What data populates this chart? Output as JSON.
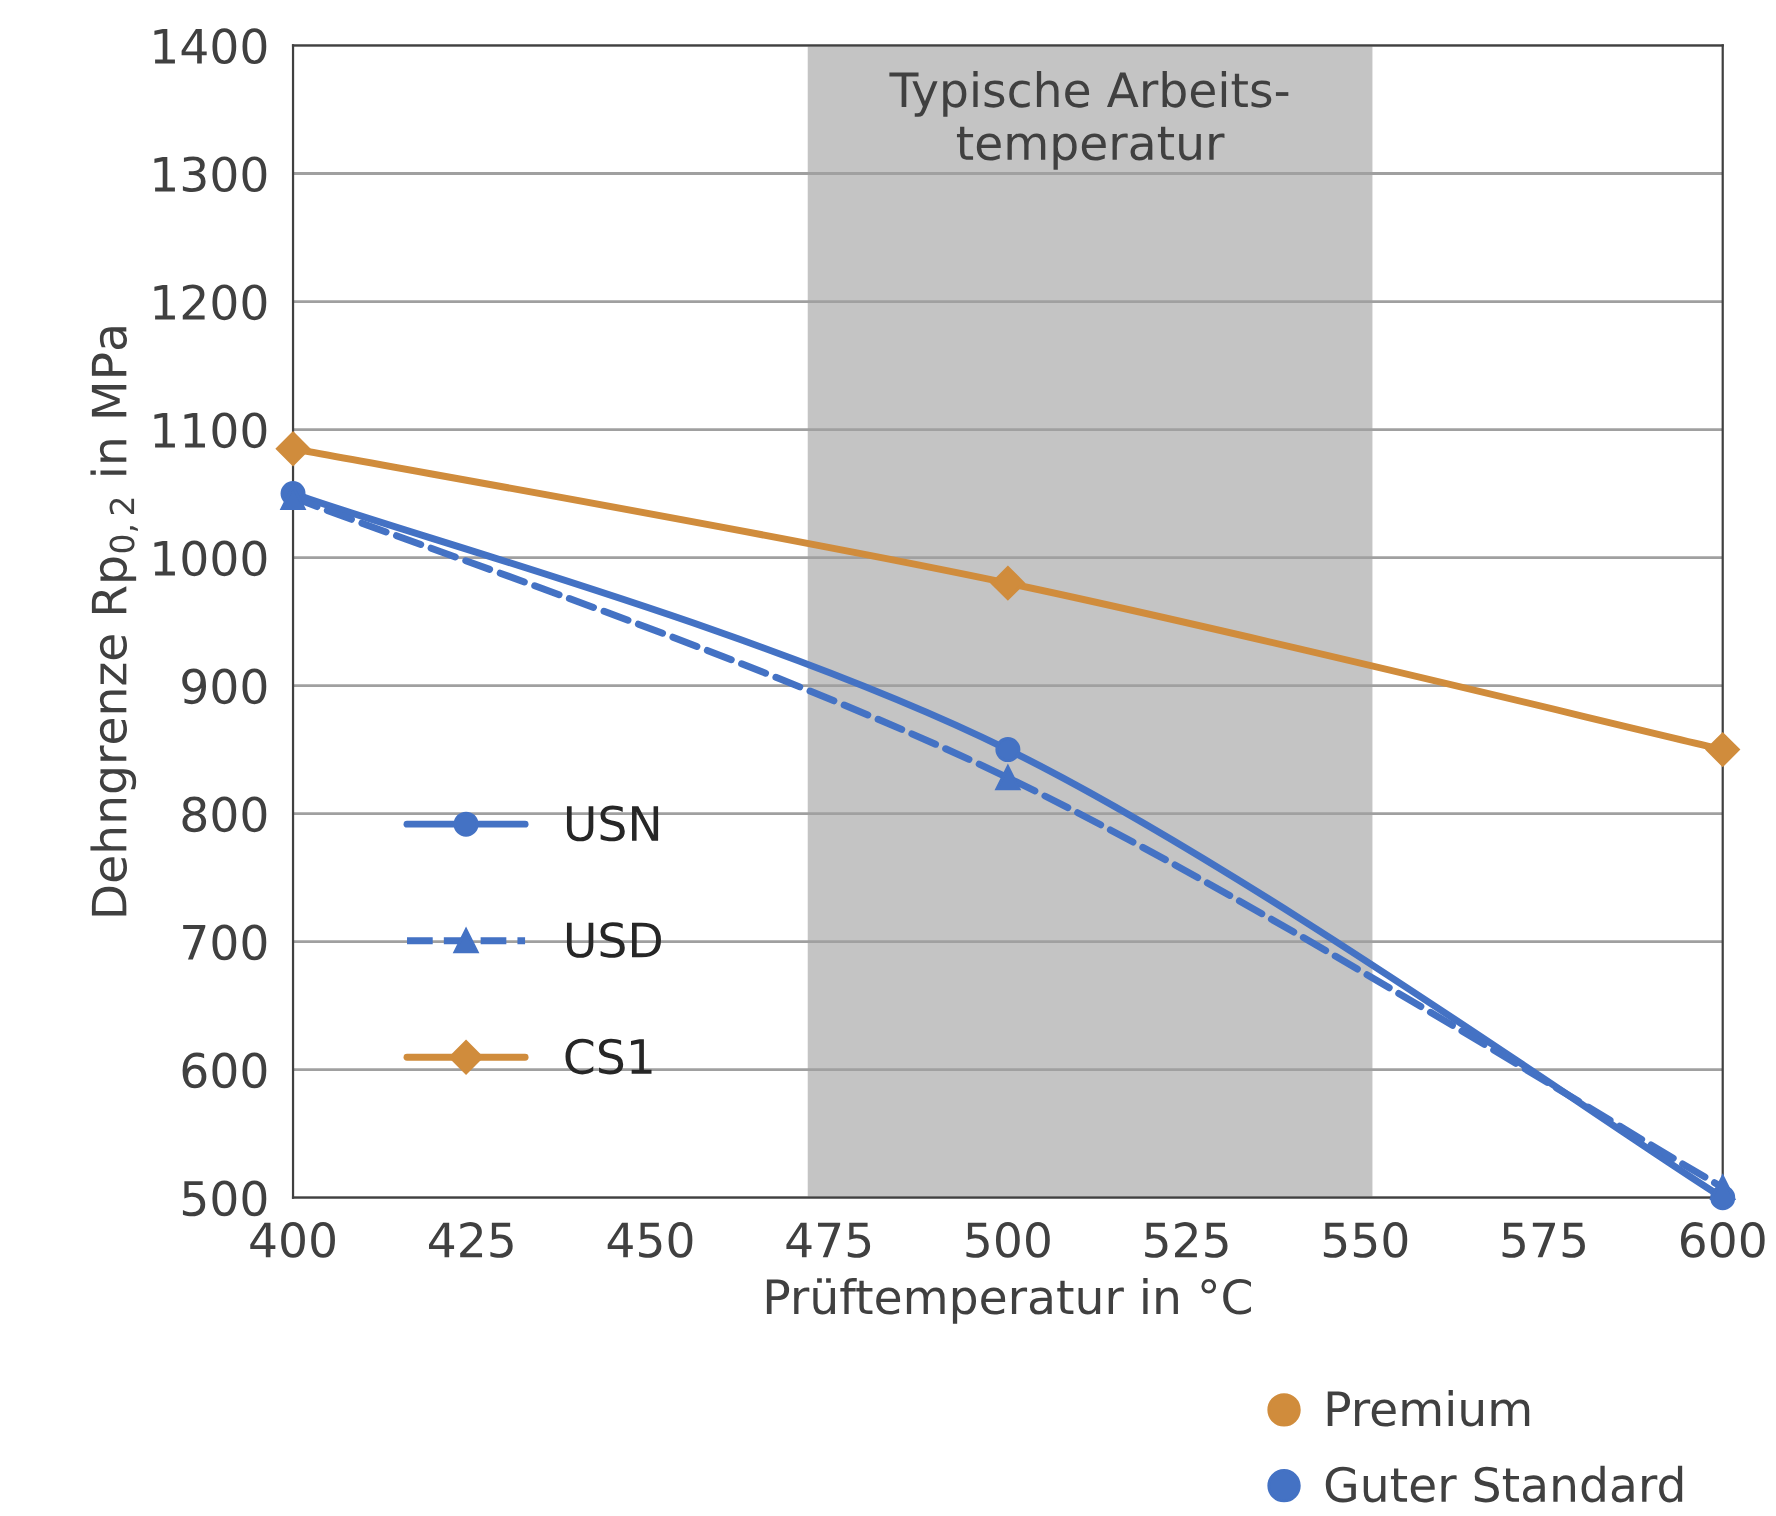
{
  "chart_data": {
    "type": "line",
    "xlabel": "Prüftemperatur in °C",
    "ylabel": "Dehngrenze Rp$_{0,2}$ in MPa",
    "x": [
      400,
      500,
      600
    ],
    "series": [
      {
        "name": "USN",
        "color": "#4472c4",
        "values": [
          1050,
          850,
          500
        ],
        "marker": "circle",
        "line_style": "solid"
      },
      {
        "name": "USD",
        "color": "#4472c4",
        "values": [
          1047,
          828,
          508
        ],
        "marker": "triangle",
        "line_style": "dashed"
      },
      {
        "name": "CS1",
        "color": "#d08c3c",
        "values": [
          1085,
          980,
          850
        ],
        "marker": "diamond",
        "line_style": "solid"
      }
    ],
    "xlim": [
      400,
      600
    ],
    "xticks": [
      400,
      425,
      450,
      475,
      500,
      525,
      550,
      575,
      600
    ],
    "ylim": [
      500,
      1400
    ],
    "yticks": [
      500,
      600,
      700,
      800,
      900,
      1000,
      1100,
      1200,
      1300,
      1400
    ],
    "bands": [
      {
        "axis": "x",
        "from": 472,
        "to": 551,
        "label": "Typische Arbeits-\ntemperatur",
        "color": "#c4c4c4"
      }
    ],
    "annotations": [
      "Premium",
      "Guter Standard"
    ],
    "grid": "y",
    "legend": "left"
  }
}
